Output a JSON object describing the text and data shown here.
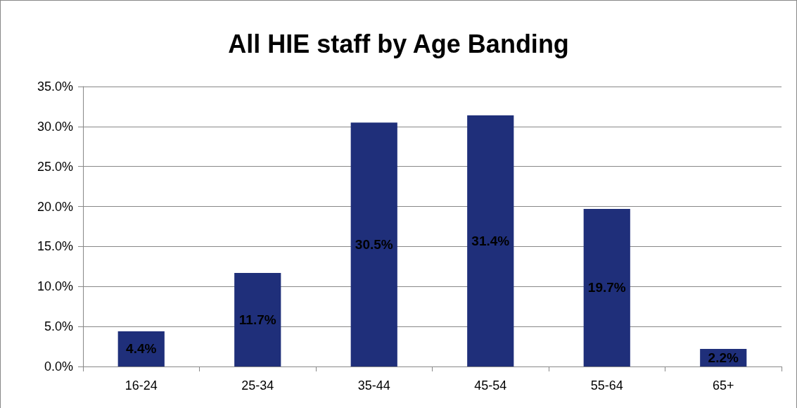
{
  "chart_data": {
    "type": "bar",
    "title": "All HIE staff by Age Banding",
    "categories": [
      "16-24",
      "25-34",
      "35-44",
      "45-54",
      "55-64",
      "65+"
    ],
    "values": [
      4.4,
      11.7,
      30.5,
      31.4,
      19.7,
      2.2
    ],
    "value_labels": [
      "4.4%",
      "11.7%",
      "30.5%",
      "31.4%",
      "19.7%",
      "2.2%"
    ],
    "color": "#1f2f7a",
    "ylim": [
      0,
      35
    ],
    "yticks": [
      {
        "value": 0,
        "label": "0.0%"
      },
      {
        "value": 5,
        "label": "5.0%"
      },
      {
        "value": 10,
        "label": "10.0%"
      },
      {
        "value": 15,
        "label": "15.0%"
      },
      {
        "value": 20,
        "label": "20.0%"
      },
      {
        "value": 25,
        "label": "25.0%"
      },
      {
        "value": 30,
        "label": "30.0%"
      },
      {
        "value": 35,
        "label": "35.0%"
      }
    ],
    "grid": "y"
  }
}
